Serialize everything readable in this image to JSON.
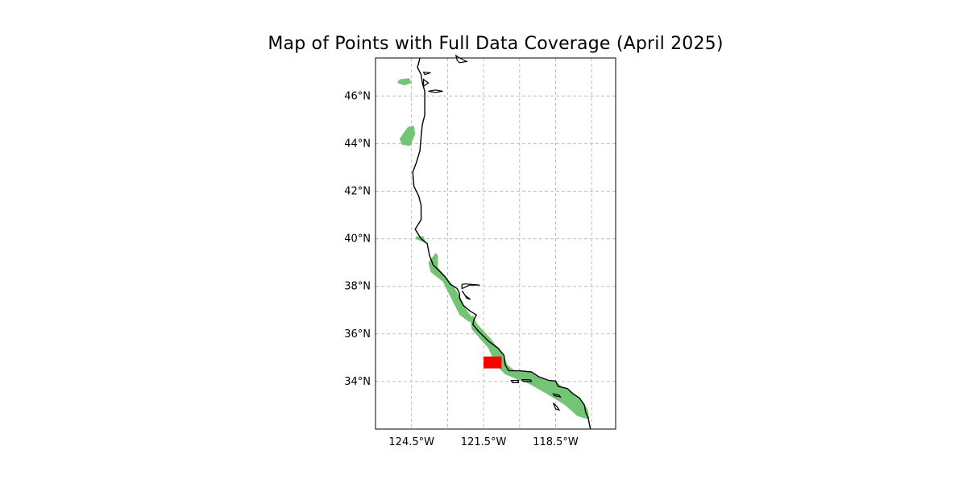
{
  "chart_data": {
    "type": "map",
    "title": "Map of Points with Full Data Coverage (April 2025)",
    "xlim": [
      -126.0,
      -116.0
    ],
    "ylim": [
      32.0,
      47.6
    ],
    "x_ticks": [
      {
        "value": -124.5,
        "label": "124.5°W"
      },
      {
        "value": -121.5,
        "label": "121.5°W"
      },
      {
        "value": -118.5,
        "label": "118.5°W"
      }
    ],
    "x_gridlines": [
      -124.5,
      -123.0,
      -121.5,
      -120.0,
      -118.5,
      -117.0
    ],
    "y_ticks": [
      {
        "value": 34,
        "label": "34°N"
      },
      {
        "value": 36,
        "label": "36°N"
      },
      {
        "value": 38,
        "label": "38°N"
      },
      {
        "value": 40,
        "label": "40°N"
      },
      {
        "value": 42,
        "label": "42°N"
      },
      {
        "value": 44,
        "label": "44°N"
      },
      {
        "value": 46,
        "label": "46°N"
      }
    ],
    "grid": true,
    "coverage_color": "#74c476",
    "highlight_color": "#ff0000",
    "coastline_color": "#000000",
    "coverage_regions": [
      [
        [
          -125.0,
          46.7
        ],
        [
          -124.6,
          46.75
        ],
        [
          -124.5,
          46.55
        ],
        [
          -124.8,
          46.45
        ],
        [
          -125.1,
          46.55
        ]
      ],
      [
        [
          -124.65,
          44.7
        ],
        [
          -124.4,
          44.75
        ],
        [
          -124.35,
          44.4
        ],
        [
          -124.55,
          43.9
        ],
        [
          -124.9,
          43.95
        ],
        [
          -125.0,
          44.2
        ]
      ],
      [
        [
          -124.3,
          40.1
        ],
        [
          -124.0,
          40.1
        ],
        [
          -123.9,
          39.8
        ],
        [
          -124.1,
          39.9
        ],
        [
          -124.35,
          40.0
        ]
      ],
      [
        [
          -123.5,
          39.4
        ],
        [
          -123.8,
          39.0
        ],
        [
          -123.7,
          38.6
        ],
        [
          -123.2,
          38.2
        ],
        [
          -122.8,
          37.4
        ],
        [
          -122.5,
          36.8
        ],
        [
          -122.1,
          36.5
        ],
        [
          -121.9,
          36.6
        ],
        [
          -122.2,
          37.0
        ],
        [
          -122.5,
          37.6
        ],
        [
          -122.9,
          38.2
        ],
        [
          -123.4,
          38.8
        ],
        [
          -123.4,
          39.3
        ]
      ],
      [
        [
          -121.95,
          36.8
        ],
        [
          -121.75,
          36.4
        ],
        [
          -121.2,
          35.8
        ],
        [
          -120.9,
          35.4
        ],
        [
          -120.62,
          35.0
        ],
        [
          -120.5,
          34.7
        ],
        [
          -120.2,
          34.45
        ],
        [
          -119.5,
          34.4
        ],
        [
          -118.9,
          34.05
        ],
        [
          -118.5,
          34.0
        ],
        [
          -118.2,
          33.75
        ],
        [
          -117.85,
          33.6
        ],
        [
          -117.4,
          33.2
        ],
        [
          -117.15,
          32.8
        ],
        [
          -117.1,
          32.4
        ],
        [
          -117.6,
          32.55
        ],
        [
          -118.1,
          33.0
        ],
        [
          -118.9,
          33.5
        ],
        [
          -119.6,
          33.9
        ],
        [
          -120.0,
          34.05
        ],
        [
          -120.6,
          34.3
        ],
        [
          -121.0,
          34.7
        ],
        [
          -121.3,
          35.4
        ],
        [
          -121.65,
          35.8
        ],
        [
          -122.0,
          36.2
        ],
        [
          -122.05,
          36.6
        ]
      ]
    ],
    "highlight_regions": [
      {
        "lon_min": -121.5,
        "lon_max": -120.75,
        "lat_min": 34.55,
        "lat_max": 35.05
      }
    ],
    "coastline": [
      [
        -124.15,
        47.6
      ],
      [
        -124.25,
        47.2
      ],
      [
        -124.1,
        46.9
      ],
      [
        -124.05,
        46.55
      ],
      [
        -123.95,
        46.2
      ],
      [
        -123.95,
        45.8
      ],
      [
        -123.95,
        45.2
      ],
      [
        -124.05,
        44.8
      ],
      [
        -124.1,
        44.3
      ],
      [
        -124.15,
        43.7
      ],
      [
        -124.3,
        43.2
      ],
      [
        -124.45,
        42.8
      ],
      [
        -124.4,
        42.2
      ],
      [
        -124.2,
        41.8
      ],
      [
        -124.1,
        41.4
      ],
      [
        -124.1,
        40.8
      ],
      [
        -124.35,
        40.4
      ],
      [
        -124.1,
        40.0
      ],
      [
        -123.85,
        39.8
      ],
      [
        -123.75,
        39.3
      ],
      [
        -123.6,
        38.9
      ],
      [
        -123.1,
        38.4
      ],
      [
        -122.9,
        38.1
      ],
      [
        -122.6,
        37.9
      ],
      [
        -122.5,
        37.7
      ],
      [
        -122.5,
        37.5
      ],
      [
        -122.35,
        37.2
      ],
      [
        -122.05,
        36.95
      ],
      [
        -121.8,
        36.8
      ],
      [
        -121.9,
        36.6
      ],
      [
        -121.95,
        36.4
      ],
      [
        -121.7,
        36.1
      ],
      [
        -121.3,
        35.7
      ],
      [
        -120.9,
        35.4
      ],
      [
        -120.65,
        35.1
      ],
      [
        -120.6,
        34.7
      ],
      [
        -120.45,
        34.45
      ],
      [
        -120.0,
        34.45
      ],
      [
        -119.5,
        34.4
      ],
      [
        -119.2,
        34.2
      ],
      [
        -118.8,
        34.05
      ],
      [
        -118.5,
        34.02
      ],
      [
        -118.4,
        33.8
      ],
      [
        -118.2,
        33.75
      ],
      [
        -118.0,
        33.7
      ],
      [
        -117.8,
        33.5
      ],
      [
        -117.5,
        33.3
      ],
      [
        -117.3,
        33.0
      ],
      [
        -117.25,
        32.7
      ],
      [
        -117.15,
        32.5
      ],
      [
        -117.05,
        32.0
      ]
    ],
    "bays": [
      [
        [
          -122.4,
          37.9
        ],
        [
          -122.3,
          37.95
        ],
        [
          -122.1,
          38.05
        ],
        [
          -121.85,
          38.05
        ],
        [
          -121.65,
          38.05
        ],
        [
          -121.85,
          38.07
        ],
        [
          -122.0,
          38.08
        ],
        [
          -122.25,
          38.1
        ],
        [
          -122.4,
          38.08
        ]
      ],
      [
        [
          -122.4,
          37.8
        ],
        [
          -122.25,
          37.6
        ],
        [
          -122.05,
          37.45
        ],
        [
          -122.2,
          37.5
        ],
        [
          -122.35,
          37.75
        ]
      ],
      [
        [
          -123.8,
          46.2
        ],
        [
          -123.5,
          46.25
        ],
        [
          -123.2,
          46.2
        ],
        [
          -123.5,
          46.15
        ]
      ],
      [
        [
          -124.0,
          47.0
        ],
        [
          -123.7,
          46.98
        ],
        [
          -123.95,
          46.9
        ]
      ],
      [
        [
          -124.0,
          46.7
        ],
        [
          -123.8,
          46.55
        ],
        [
          -123.95,
          46.45
        ],
        [
          -124.0,
          46.4
        ]
      ],
      [
        [
          -122.5,
          47.6
        ],
        [
          -122.3,
          47.5
        ],
        [
          -122.2,
          47.45
        ],
        [
          -122.5,
          47.4
        ],
        [
          -122.6,
          47.5
        ],
        [
          -122.65,
          47.7
        ]
      ]
    ],
    "islands": [
      [
        [
          -119.9,
          34.08
        ],
        [
          -119.55,
          34.07
        ],
        [
          -119.5,
          34.0
        ],
        [
          -119.85,
          34.0
        ]
      ],
      [
        [
          -120.35,
          34.04
        ],
        [
          -120.05,
          34.05
        ],
        [
          -120.05,
          33.95
        ],
        [
          -120.3,
          33.95
        ]
      ],
      [
        [
          -118.6,
          33.48
        ],
        [
          -118.35,
          33.42
        ],
        [
          -118.3,
          33.35
        ],
        [
          -118.55,
          33.4
        ]
      ],
      [
        [
          -118.6,
          33.1
        ],
        [
          -118.45,
          32.95
        ],
        [
          -118.35,
          32.8
        ],
        [
          -118.5,
          32.85
        ]
      ]
    ]
  }
}
